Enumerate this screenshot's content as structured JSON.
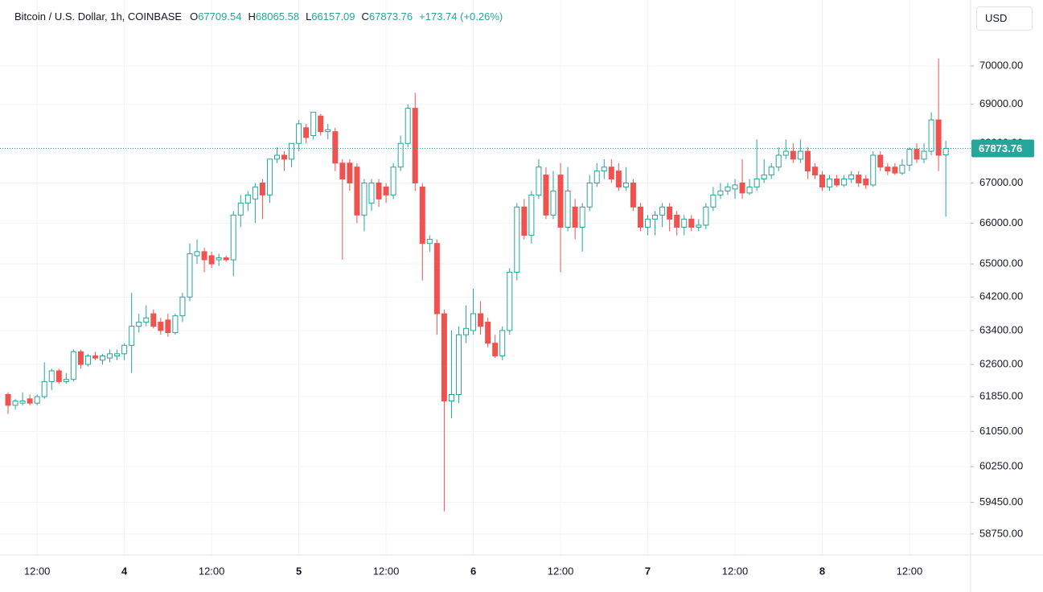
{
  "chart_data": {
    "type": "candlestick",
    "title": "Bitcoin / U.S. Dollar, 1h, COINBASE",
    "ohlc_labels": [
      "O",
      "H",
      "L",
      "C"
    ],
    "change": "+173.74 (+0.26%)",
    "currency": "USD",
    "categories": [
      null,
      null,
      null,
      null,
      "12:00",
      null,
      null,
      null,
      null,
      null,
      null,
      null,
      null,
      null,
      null,
      null,
      "4",
      null,
      null,
      null,
      null,
      null,
      null,
      null,
      null,
      null,
      null,
      null,
      "12:00",
      null,
      null,
      null,
      null,
      null,
      null,
      null,
      null,
      null,
      null,
      null,
      "5",
      null,
      null,
      null,
      null,
      null,
      null,
      null,
      null,
      null,
      null,
      null,
      "12:00",
      null,
      null,
      null,
      null,
      null,
      null,
      null,
      null,
      null,
      null,
      null,
      "6",
      null,
      null,
      null,
      null,
      null,
      null,
      null,
      null,
      null,
      null,
      null,
      "12:00",
      null,
      null,
      null,
      null,
      null,
      null,
      null,
      null,
      null,
      null,
      null,
      "7",
      null,
      null,
      null,
      null,
      null,
      null,
      null,
      null,
      null,
      null,
      null,
      "12:00",
      null,
      null,
      null,
      null,
      null,
      null,
      null,
      null,
      null,
      null,
      null,
      "8",
      null,
      null,
      null,
      null,
      null,
      null,
      null,
      null,
      null,
      null,
      null,
      "12:00",
      null,
      null,
      null,
      null,
      null
    ],
    "open": [
      61900,
      61650,
      61700,
      61800,
      61700,
      61850,
      62200,
      62450,
      62200,
      62250,
      62900,
      62600,
      62800,
      62700,
      62750,
      62800,
      62850,
      63050,
      63500,
      63600,
      63800,
      63600,
      63650,
      63350,
      63750,
      64200,
      65200,
      65300,
      65200,
      65100,
      65150,
      65100,
      66200,
      66500,
      66600,
      67000,
      66700,
      67600,
      67700,
      67600,
      68000,
      68400,
      68200,
      68700,
      68300,
      68300,
      67500,
      67500,
      67400,
      66200,
      66500,
      67000,
      66900,
      66700,
      67400,
      68000,
      68900,
      66900,
      65500,
      65500,
      63800,
      61750,
      61900,
      63300,
      63400,
      63800,
      63600,
      63100,
      62800,
      63400,
      64800,
      66400,
      65700,
      66700,
      67200,
      66200,
      67200,
      65900,
      66400,
      65900,
      66400,
      67000,
      67300,
      67400,
      67300,
      66900,
      67000,
      66400,
      65900,
      66100,
      66200,
      66400,
      66200,
      65900,
      66100,
      65900,
      65950,
      66400,
      66700,
      66800,
      66850,
      67000,
      66750,
      66900,
      67100,
      67200,
      67400,
      67700,
      67800,
      67600,
      67800,
      67400,
      67200,
      66900,
      67100,
      66950,
      67100,
      67200,
      67100,
      66950,
      67700,
      67400,
      67400,
      67250,
      67450,
      67850,
      67600,
      67800,
      68600,
      67709.54
    ],
    "high": [
      61950,
      61800,
      61950,
      61900,
      61900,
      62650,
      62500,
      62500,
      62400,
      62950,
      62950,
      62850,
      62900,
      62850,
      62950,
      62950,
      63100,
      64300,
      63800,
      64000,
      63900,
      63700,
      63800,
      63800,
      64300,
      65500,
      65600,
      65400,
      65300,
      65250,
      65200,
      66300,
      66700,
      66800,
      67000,
      67100,
      67600,
      67900,
      67800,
      68000,
      68600,
      68500,
      68800,
      68750,
      68500,
      68400,
      67600,
      67600,
      67500,
      67100,
      67100,
      67100,
      67000,
      67500,
      68200,
      69000,
      69300,
      67000,
      65700,
      65600,
      63900,
      63400,
      63500,
      64000,
      64400,
      64100,
      63700,
      63300,
      63500,
      64900,
      66500,
      66600,
      66800,
      67600,
      67400,
      67300,
      67500,
      67400,
      66600,
      66500,
      67200,
      67500,
      67600,
      67600,
      67500,
      67400,
      67100,
      66500,
      66200,
      66300,
      66500,
      66500,
      66300,
      66200,
      66200,
      66100,
      66500,
      66900,
      67000,
      67000,
      67100,
      67600,
      67100,
      68100,
      67600,
      67500,
      67900,
      68100,
      68000,
      68100,
      67900,
      67500,
      67300,
      67200,
      67200,
      67200,
      67300,
      67300,
      67200,
      67800,
      67800,
      67500,
      67500,
      67600,
      67900,
      68000,
      68000,
      68800,
      70200,
      68065.58
    ],
    "low": [
      61450,
      61550,
      61650,
      61650,
      61650,
      61800,
      62000,
      62150,
      62150,
      62200,
      62500,
      62550,
      62700,
      62600,
      62650,
      62700,
      62700,
      62400,
      63350,
      63500,
      63450,
      63300,
      63250,
      63300,
      63600,
      64100,
      65000,
      64800,
      64900,
      64950,
      65050,
      64700,
      65900,
      66300,
      66000,
      66100,
      66500,
      67500,
      67300,
      67400,
      67800,
      68000,
      68100,
      68200,
      68100,
      67300,
      65100,
      66800,
      66000,
      65800,
      66300,
      66400,
      66500,
      66600,
      67300,
      67900,
      66800,
      64600,
      65300,
      63300,
      59250,
      61350,
      61700,
      63100,
      63300,
      63300,
      63000,
      62750,
      62700,
      63300,
      64600,
      65600,
      65500,
      66600,
      66100,
      66100,
      64800,
      65800,
      65600,
      65300,
      66300,
      66900,
      67100,
      67000,
      66800,
      66800,
      66300,
      65800,
      65700,
      65700,
      65900,
      65800,
      65700,
      65700,
      65800,
      65800,
      65850,
      66300,
      66600,
      66700,
      66600,
      66600,
      66700,
      66800,
      67000,
      67100,
      67300,
      67600,
      67500,
      67500,
      67100,
      67100,
      66800,
      66800,
      66900,
      66900,
      67000,
      66900,
      66850,
      66900,
      67300,
      67200,
      67200,
      67200,
      67300,
      67500,
      67500,
      67700,
      67300,
      66157.09
    ],
    "close": [
      61650,
      61750,
      61750,
      61700,
      61850,
      62200,
      62450,
      62200,
      62250,
      62900,
      62600,
      62800,
      62750,
      62800,
      62850,
      62850,
      63050,
      63500,
      63600,
      63700,
      63500,
      63400,
      63350,
      63750,
      64200,
      65250,
      65300,
      65100,
      65000,
      65150,
      65100,
      66200,
      66500,
      66700,
      66900,
      66700,
      67600,
      67700,
      67600,
      68000,
      68500,
      68150,
      68800,
      68300,
      68350,
      67500,
      67100,
      67000,
      66200,
      67000,
      67000,
      66600,
      66700,
      67400,
      68000,
      68900,
      67000,
      65500,
      65600,
      63800,
      61750,
      61900,
      63300,
      63450,
      63800,
      63500,
      63100,
      62800,
      63400,
      64800,
      66400,
      65700,
      66700,
      67400,
      66200,
      66800,
      65900,
      66800,
      65900,
      66400,
      67000,
      67300,
      67400,
      67100,
      66900,
      67000,
      66400,
      65900,
      66100,
      66200,
      66400,
      66100,
      65900,
      66100,
      65900,
      65950,
      66400,
      66700,
      66800,
      66900,
      66950,
      66750,
      66900,
      67100,
      67200,
      67400,
      67700,
      67800,
      67600,
      67800,
      67300,
      67200,
      66900,
      67100,
      66950,
      67100,
      67200,
      67000,
      66950,
      67700,
      67400,
      67300,
      67250,
      67450,
      67850,
      67600,
      67800,
      68600,
      67700,
      67873.76
    ],
    "up_color": "#26a69a",
    "down_color": "#ef5350",
    "log_scale": true,
    "grid": true,
    "ylim": [
      58290,
      71750
    ],
    "yticks": [
      {
        "value": 70000,
        "label": "70000.00"
      },
      {
        "value": 69000,
        "label": "69000.00"
      },
      {
        "value": 68000,
        "label": "68000.00"
      },
      {
        "value": 67000,
        "label": "67000.00"
      },
      {
        "value": 66000,
        "label": "66000.00"
      },
      {
        "value": 65000,
        "label": "65000.00"
      },
      {
        "value": 64200,
        "label": "64200.00"
      },
      {
        "value": 63400,
        "label": "63400.00"
      },
      {
        "value": 62600,
        "label": "62600.00"
      },
      {
        "value": 61850,
        "label": "61850.00"
      },
      {
        "value": 61050,
        "label": "61050.00"
      },
      {
        "value": 60250,
        "label": "60250.00"
      },
      {
        "value": 59450,
        "label": "59450.00"
      },
      {
        "value": 58750,
        "label": "58750.00"
      }
    ]
  }
}
